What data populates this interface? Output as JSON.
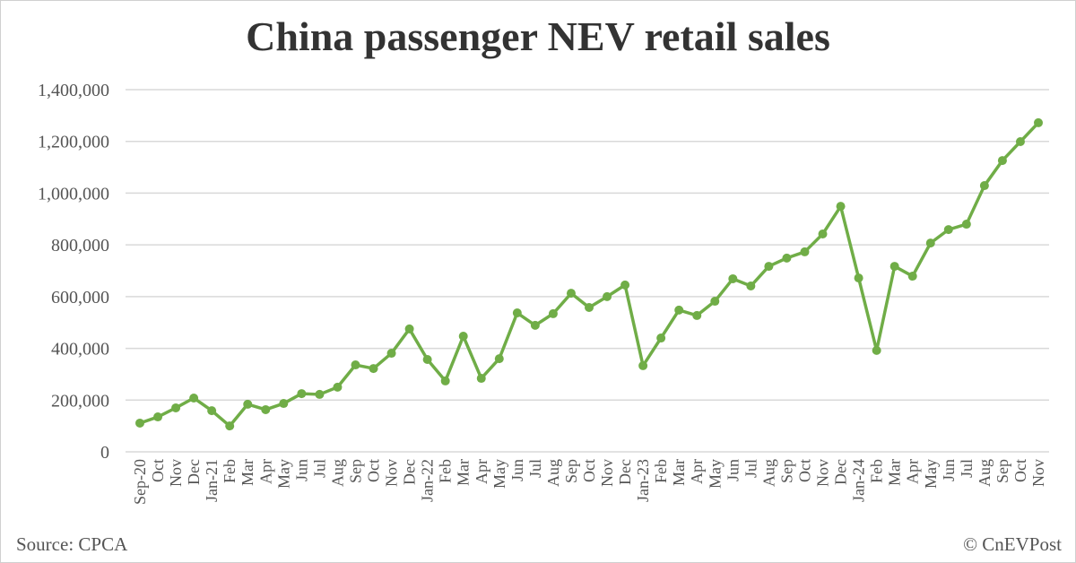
{
  "chart_data": {
    "type": "line",
    "title": "China passenger NEV retail sales",
    "xlabel": "",
    "ylabel": "",
    "ylim": [
      0,
      1400000
    ],
    "yticks": [
      "0",
      "200,000",
      "400,000",
      "600,000",
      "800,000",
      "1,000,000",
      "1,200,000",
      "1,400,000"
    ],
    "grid": true,
    "line_color": "#70ad47",
    "categories": [
      "Sep-20",
      "Oct",
      "Nov",
      "Dec",
      "Jan-21",
      "Feb",
      "Mar",
      "Apr",
      "May",
      "Jun",
      "Jul",
      "Aug",
      "Sep",
      "Oct",
      "Nov",
      "Dec",
      "Jan-22",
      "Feb",
      "Mar",
      "Apr",
      "May",
      "Jun",
      "Jul",
      "Aug",
      "Sep",
      "Oct",
      "Nov",
      "Dec",
      "Jan-23",
      "Feb",
      "Mar",
      "Apr",
      "May",
      "Jun",
      "Jul",
      "Aug",
      "Sep",
      "Oct",
      "Nov",
      "Dec",
      "Jan-24",
      "Feb",
      "Mar",
      "Apr",
      "May",
      "Jun",
      "Jul",
      "Aug",
      "Sep",
      "Oct",
      "Nov"
    ],
    "values": [
      111000,
      135000,
      170000,
      208000,
      159000,
      100000,
      184000,
      163000,
      187000,
      225000,
      222000,
      250000,
      336000,
      322000,
      381000,
      475000,
      357000,
      274000,
      447000,
      284000,
      360000,
      537000,
      489000,
      534000,
      613000,
      558000,
      600000,
      645000,
      333000,
      440000,
      548000,
      527000,
      582000,
      669000,
      641000,
      717000,
      749000,
      773000,
      842000,
      949000,
      672000,
      392000,
      717000,
      679000,
      807000,
      859000,
      880000,
      1029000,
      1126000,
      1199000,
      1272000
    ]
  },
  "footer": {
    "source": "Source: CPCA",
    "copyright": "© CnEVPost"
  }
}
